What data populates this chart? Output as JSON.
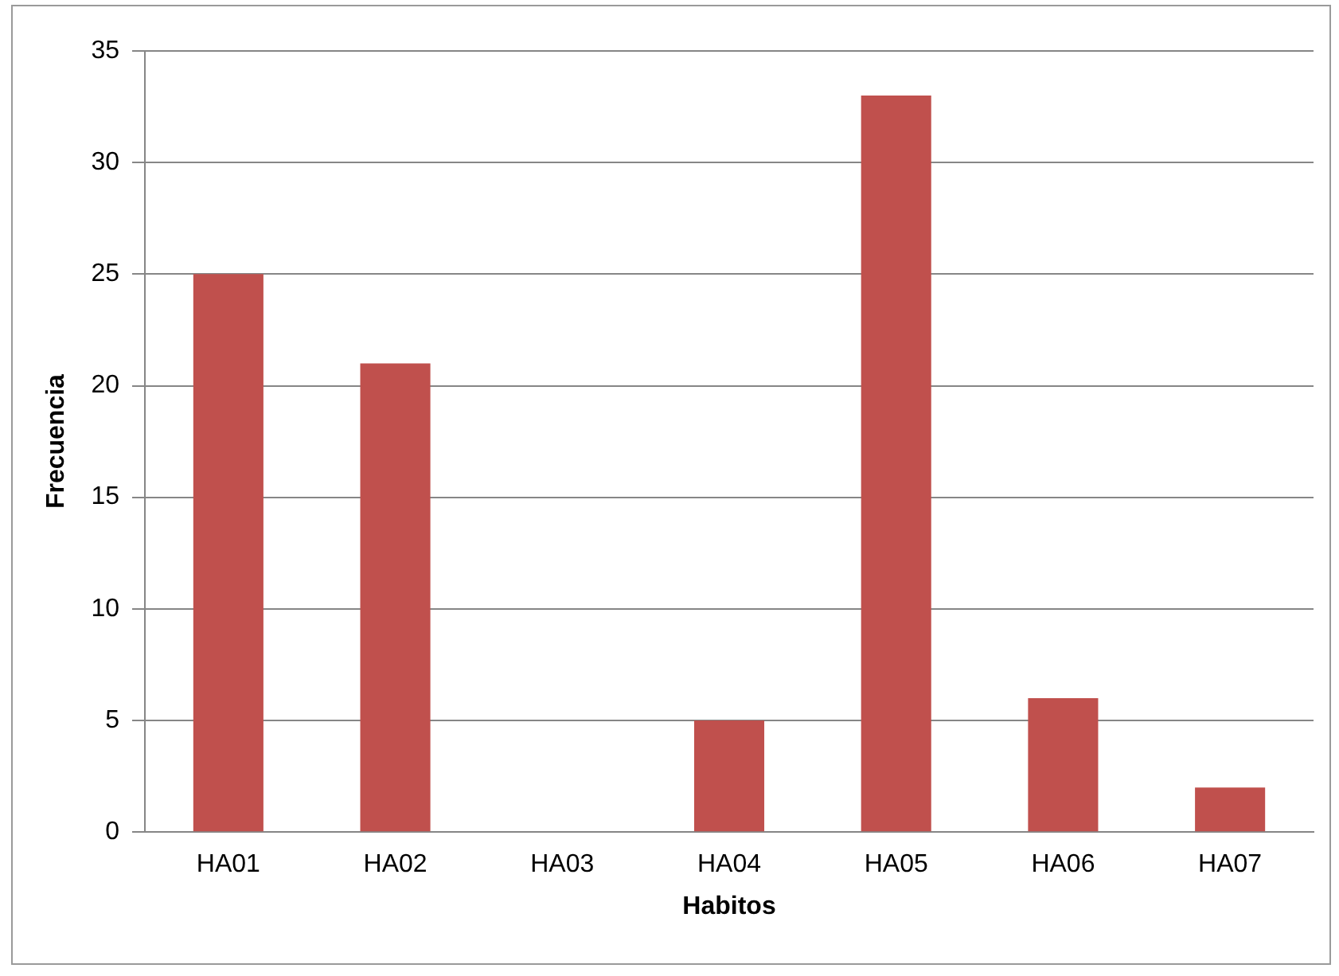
{
  "chart_data": {
    "type": "bar",
    "xlabel": "Habitos",
    "ylabel": "Frecuencia",
    "categories": [
      "HA01",
      "HA02",
      "HA03",
      "HA04",
      "HA05",
      "HA06",
      "HA07"
    ],
    "values": [
      25,
      21,
      0,
      5,
      33,
      6,
      2
    ],
    "color": "#c0504d",
    "ylim": [
      0,
      35
    ],
    "yticks": [
      0,
      5,
      10,
      15,
      20,
      25,
      30,
      35
    ],
    "grid": "y",
    "legend": false
  }
}
